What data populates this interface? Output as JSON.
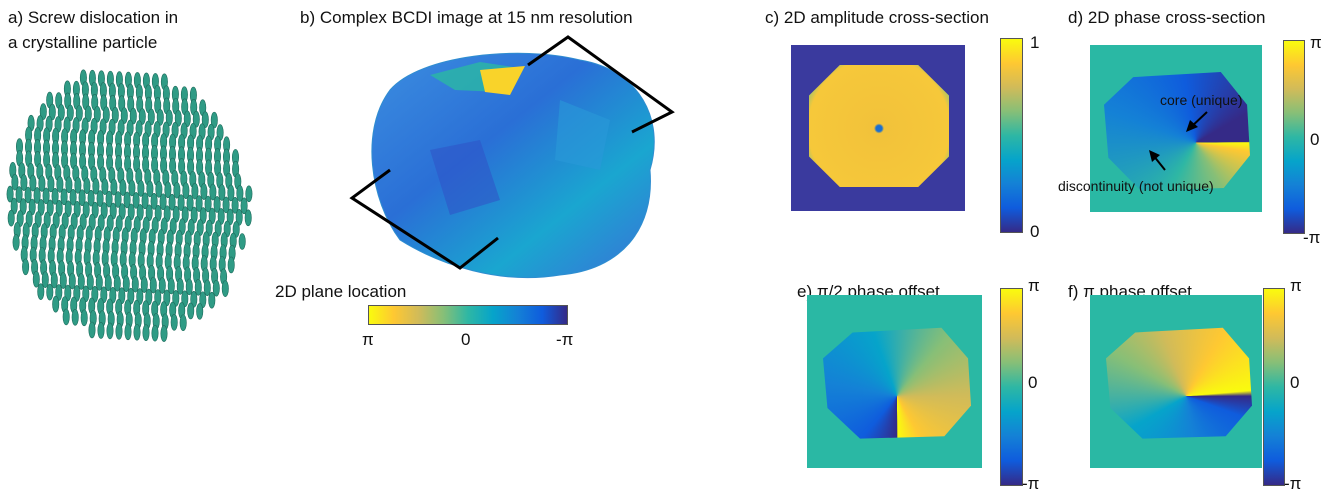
{
  "panels": [
    {
      "title_lines": [
        "a) Screw dislocation in",
        "a crystalline particle"
      ]
    },
    {
      "title": "b) Complex BCDI image at 15 nm resolution",
      "colorbar_label": "2D plane location",
      "colorbar_ticks": [
        "π",
        "0",
        "-π"
      ]
    },
    {
      "title": "c) 2D amplitude cross-section",
      "colorbar_ticks": [
        "1",
        "0"
      ]
    },
    {
      "title": "d) 2D phase cross-section",
      "colorbar_ticks": [
        "π",
        "0",
        "-π"
      ],
      "annotations": [
        "core (unique)",
        "discontinuity (not unique)"
      ]
    },
    {
      "title": "e) π/2  phase offset",
      "colorbar_ticks": [
        "π",
        "0",
        "-π"
      ]
    },
    {
      "title": "f) π phase offset",
      "colorbar_ticks": [
        "π",
        "0",
        "-π"
      ]
    }
  ]
}
